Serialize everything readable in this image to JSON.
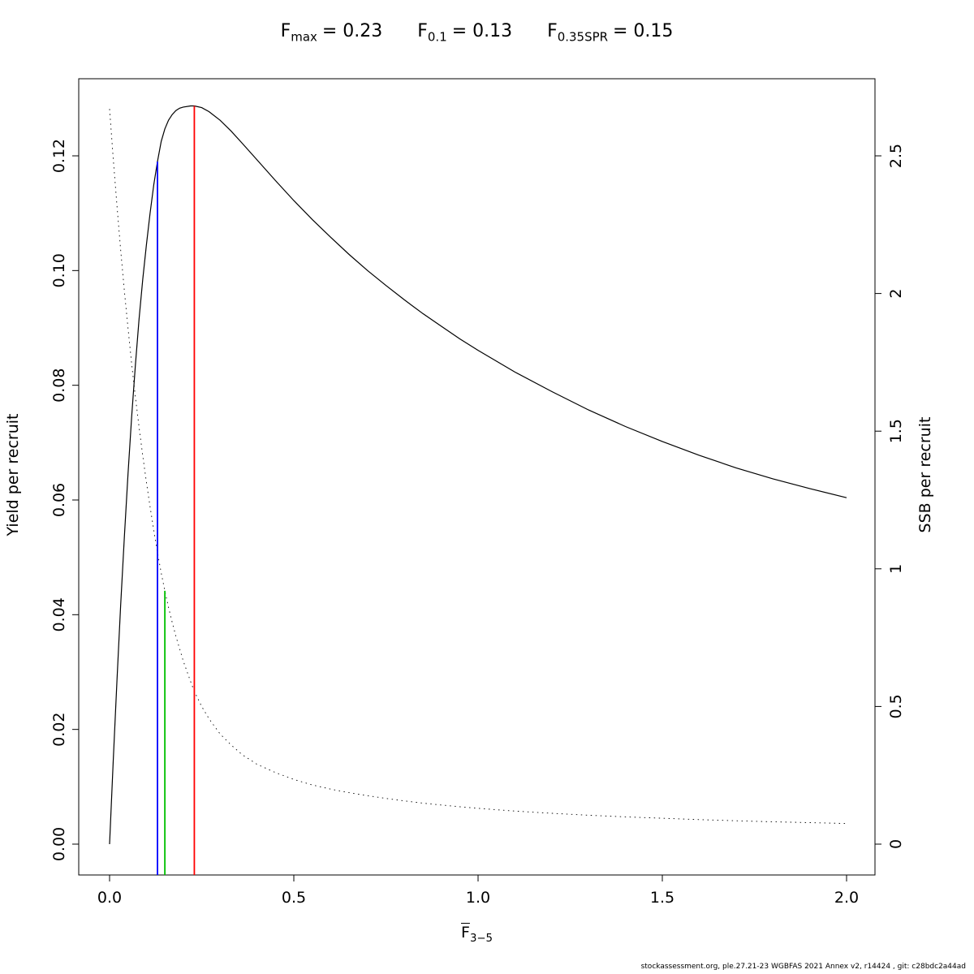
{
  "title": {
    "items": [
      {
        "base": "F",
        "sub": "max",
        "value": "= 0.23"
      },
      {
        "base": "F",
        "sub": "0.1",
        "value": "= 0.13"
      },
      {
        "base": "F",
        "sub": "0.35SPR",
        "value": "= 0.15"
      }
    ]
  },
  "axes": {
    "y_left_label": "Yield per recruit",
    "y_right_label": "SSB per recruit",
    "x_label_base": "F",
    "x_label_sub": "3−5"
  },
  "footer": {
    "text": "stockassessment.org, ple.27.21-23 WGBFAS 2021 Annex v2, r14424 , git: c28bdc2a44ad"
  },
  "chart_data": {
    "type": "line",
    "title": "Fmax = 0.23   F0.1 = 0.13   F0.35SPR = 0.15",
    "reference_points": {
      "F_max": 0.23,
      "F_0.1": 0.13,
      "F_0.35SPR": 0.15
    },
    "x_axis": {
      "label": "mean F ages 3-5",
      "range": [
        0,
        2
      ],
      "ticks": [
        0,
        0.5,
        1,
        1.5,
        2
      ],
      "tick_labels": [
        "0.0",
        "0.5",
        "1.0",
        "1.5",
        "2.0"
      ]
    },
    "y_left_axis": {
      "label": "Yield per recruit",
      "range": [
        0,
        0.13
      ],
      "ticks": [
        0,
        0.02,
        0.04,
        0.06,
        0.08,
        0.1,
        0.12
      ],
      "tick_labels": [
        "0.00",
        "0.02",
        "0.04",
        "0.06",
        "0.08",
        "0.10",
        "0.12"
      ]
    },
    "y_right_axis": {
      "label": "SSB per recruit",
      "range": [
        0,
        2.7
      ],
      "ticks": [
        0,
        0.5,
        1,
        1.5,
        2,
        2.5
      ],
      "tick_labels": [
        "0",
        "0.5",
        "1",
        "1.5",
        "2",
        "2.5"
      ]
    },
    "grid": false,
    "legend": "none",
    "series": [
      {
        "name": "yield_per_recruit",
        "axis": "left",
        "style": "solid",
        "color": "#000000",
        "points": [
          [
            0,
            0
          ],
          [
            0.01,
            0.0145
          ],
          [
            0.02,
            0.0285
          ],
          [
            0.03,
            0.0415
          ],
          [
            0.04,
            0.0535
          ],
          [
            0.05,
            0.0645
          ],
          [
            0.06,
            0.0745
          ],
          [
            0.07,
            0.0835
          ],
          [
            0.08,
            0.0915
          ],
          [
            0.09,
            0.0985
          ],
          [
            0.1,
            0.1045
          ],
          [
            0.11,
            0.11
          ],
          [
            0.12,
            0.115
          ],
          [
            0.13,
            0.119
          ],
          [
            0.14,
            0.1225
          ],
          [
            0.15,
            0.1247
          ],
          [
            0.16,
            0.1262
          ],
          [
            0.17,
            0.1272
          ],
          [
            0.18,
            0.1279
          ],
          [
            0.19,
            0.1283
          ],
          [
            0.2,
            0.1285
          ],
          [
            0.22,
            0.1287
          ],
          [
            0.23,
            0.1287
          ],
          [
            0.25,
            0.1284
          ],
          [
            0.27,
            0.1277
          ],
          [
            0.3,
            0.1262
          ],
          [
            0.33,
            0.1243
          ],
          [
            0.36,
            0.1222
          ],
          [
            0.4,
            0.1193
          ],
          [
            0.45,
            0.1157
          ],
          [
            0.5,
            0.1122
          ],
          [
            0.55,
            0.1089
          ],
          [
            0.6,
            0.1058
          ],
          [
            0.65,
            0.1028
          ],
          [
            0.7,
            0.1
          ],
          [
            0.75,
            0.0974
          ],
          [
            0.8,
            0.0949
          ],
          [
            0.85,
            0.0925
          ],
          [
            0.9,
            0.0903
          ],
          [
            0.95,
            0.0881
          ],
          [
            1.0,
            0.0861
          ],
          [
            1.1,
            0.0823
          ],
          [
            1.2,
            0.0789
          ],
          [
            1.3,
            0.0757
          ],
          [
            1.4,
            0.0728
          ],
          [
            1.5,
            0.0702
          ],
          [
            1.6,
            0.0678
          ],
          [
            1.7,
            0.0656
          ],
          [
            1.8,
            0.0637
          ],
          [
            1.9,
            0.062
          ],
          [
            2.0,
            0.0604
          ]
        ]
      },
      {
        "name": "ssb_per_recruit",
        "axis": "right",
        "style": "dotted",
        "color": "#000000",
        "points": [
          [
            0,
            2.67
          ],
          [
            0.01,
            2.49
          ],
          [
            0.02,
            2.32
          ],
          [
            0.03,
            2.16
          ],
          [
            0.04,
            2.01
          ],
          [
            0.05,
            1.875
          ],
          [
            0.06,
            1.745
          ],
          [
            0.07,
            1.625
          ],
          [
            0.08,
            1.515
          ],
          [
            0.09,
            1.41
          ],
          [
            0.1,
            1.315
          ],
          [
            0.11,
            1.225
          ],
          [
            0.12,
            1.14
          ],
          [
            0.13,
            1.06
          ],
          [
            0.14,
            0.985
          ],
          [
            0.15,
            0.92
          ],
          [
            0.16,
            0.86
          ],
          [
            0.17,
            0.805
          ],
          [
            0.18,
            0.755
          ],
          [
            0.19,
            0.71
          ],
          [
            0.2,
            0.665
          ],
          [
            0.22,
            0.59
          ],
          [
            0.23,
            0.555
          ],
          [
            0.25,
            0.5
          ],
          [
            0.27,
            0.455
          ],
          [
            0.3,
            0.4
          ],
          [
            0.33,
            0.36
          ],
          [
            0.36,
            0.325
          ],
          [
            0.4,
            0.29
          ],
          [
            0.45,
            0.26
          ],
          [
            0.5,
            0.235
          ],
          [
            0.55,
            0.215
          ],
          [
            0.6,
            0.2
          ],
          [
            0.65,
            0.187
          ],
          [
            0.7,
            0.176
          ],
          [
            0.75,
            0.166
          ],
          [
            0.8,
            0.157
          ],
          [
            0.85,
            0.149
          ],
          [
            0.9,
            0.142
          ],
          [
            0.95,
            0.136
          ],
          [
            1.0,
            0.13
          ],
          [
            1.1,
            0.12
          ],
          [
            1.2,
            0.112
          ],
          [
            1.3,
            0.105
          ],
          [
            1.4,
            0.099
          ],
          [
            1.5,
            0.094
          ],
          [
            1.6,
            0.089
          ],
          [
            1.7,
            0.085
          ],
          [
            1.8,
            0.081
          ],
          [
            1.9,
            0.078
          ],
          [
            2.0,
            0.075
          ]
        ]
      }
    ],
    "reference_lines": [
      {
        "name": "F_0.1",
        "x": 0.13,
        "color": "#0000ff",
        "extends_to": "yield_per_recruit"
      },
      {
        "name": "F_0.35SPR",
        "x": 0.15,
        "color": "#00c000",
        "extends_to": "ssb_per_recruit"
      },
      {
        "name": "F_max",
        "x": 0.23,
        "color": "#ff0000",
        "extends_to": "yield_per_recruit"
      }
    ]
  }
}
